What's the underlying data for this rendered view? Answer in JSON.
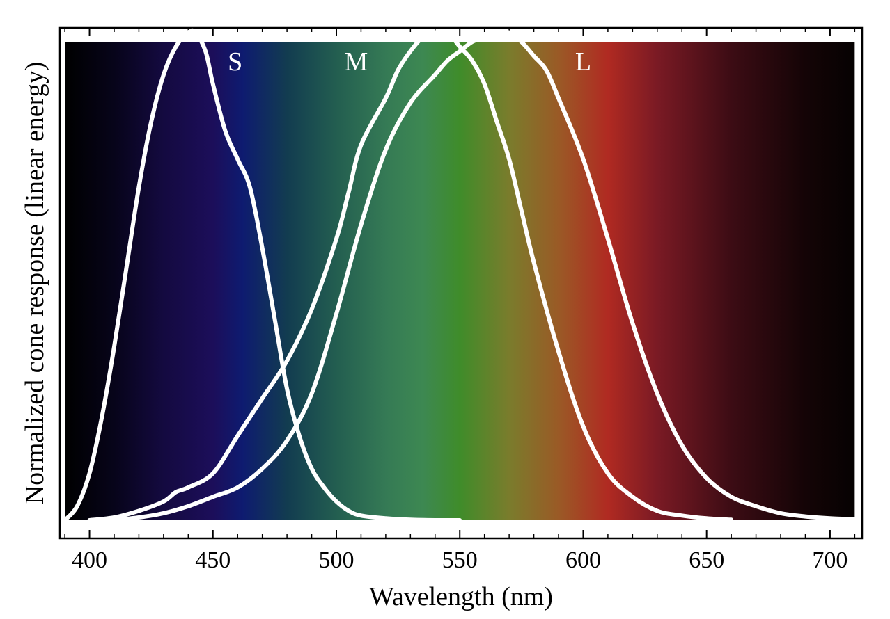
{
  "chart_data": {
    "type": "line",
    "xlabel": "Wavelength (nm)",
    "ylabel": "Normalized cone response (linear energy)",
    "xlim": [
      388,
      713
    ],
    "ylim": [
      0,
      1.05
    ],
    "xticks": [
      400,
      450,
      500,
      550,
      600,
      650,
      700
    ],
    "yticks_shown": false,
    "grid": false,
    "background": "visible-spectrum gradient 390–710 nm",
    "spectrum_colors": [
      {
        "nm": 390,
        "color": "#000000"
      },
      {
        "nm": 410,
        "color": "#07041a"
      },
      {
        "nm": 430,
        "color": "#140a40"
      },
      {
        "nm": 450,
        "color": "#1c0e5a"
      },
      {
        "nm": 462,
        "color": "#0e1b70"
      },
      {
        "nm": 480,
        "color": "#123c50"
      },
      {
        "nm": 500,
        "color": "#235e50"
      },
      {
        "nm": 520,
        "color": "#357a55"
      },
      {
        "nm": 535,
        "color": "#3d8852"
      },
      {
        "nm": 550,
        "color": "#3f8c2a"
      },
      {
        "nm": 570,
        "color": "#7a7c2c"
      },
      {
        "nm": 590,
        "color": "#9a5a26"
      },
      {
        "nm": 610,
        "color": "#b02a22"
      },
      {
        "nm": 630,
        "color": "#7a1a24"
      },
      {
        "nm": 660,
        "color": "#3c0c14"
      },
      {
        "nm": 690,
        "color": "#140406"
      },
      {
        "nm": 710,
        "color": "#060202"
      }
    ],
    "series": [
      {
        "name": "S",
        "color": "#ffffff",
        "x": [
          390,
          395,
          400,
          405,
          410,
          415,
          420,
          425,
          430,
          435,
          440,
          443,
          447,
          450,
          455,
          460,
          465,
          470,
          475,
          480,
          485,
          490,
          495,
          500,
          505,
          510,
          520,
          530,
          540,
          550
        ],
        "y": [
          0.0,
          0.03,
          0.1,
          0.22,
          0.37,
          0.54,
          0.71,
          0.85,
          0.95,
          1.01,
          1.04,
          1.04,
          1.0,
          0.93,
          0.83,
          0.77,
          0.71,
          0.58,
          0.43,
          0.28,
          0.18,
          0.11,
          0.07,
          0.04,
          0.02,
          0.01,
          0.004,
          0.001,
          0.0,
          0.0
        ]
      },
      {
        "name": "M",
        "color": "#ffffff",
        "x": [
          400,
          410,
          420,
          430,
          435,
          440,
          450,
          460,
          470,
          480,
          490,
          500,
          505,
          510,
          520,
          525,
          530,
          535,
          540,
          545,
          550,
          555,
          560,
          565,
          570,
          575,
          580,
          590,
          600,
          610,
          620,
          630,
          640,
          650,
          660
        ],
        "y": [
          0.0,
          0.006,
          0.02,
          0.04,
          0.06,
          0.07,
          0.1,
          0.18,
          0.26,
          0.34,
          0.45,
          0.6,
          0.7,
          0.8,
          0.9,
          0.96,
          1.0,
          1.03,
          1.04,
          1.04,
          1.01,
          0.98,
          0.93,
          0.85,
          0.77,
          0.66,
          0.55,
          0.36,
          0.2,
          0.1,
          0.05,
          0.02,
          0.01,
          0.004,
          0.001
        ]
      },
      {
        "name": "L",
        "color": "#ffffff",
        "x": [
          410,
          420,
          430,
          440,
          450,
          460,
          470,
          480,
          490,
          500,
          510,
          520,
          530,
          540,
          545,
          550,
          555,
          560,
          565,
          570,
          575,
          580,
          585,
          590,
          600,
          610,
          620,
          630,
          640,
          650,
          660,
          670,
          680,
          690,
          700,
          710
        ],
        "y": [
          0.0,
          0.006,
          0.015,
          0.03,
          0.05,
          0.07,
          0.11,
          0.17,
          0.27,
          0.44,
          0.63,
          0.79,
          0.89,
          0.95,
          0.98,
          1.0,
          1.02,
          1.03,
          1.04,
          1.04,
          1.02,
          0.99,
          0.96,
          0.9,
          0.77,
          0.6,
          0.42,
          0.27,
          0.16,
          0.09,
          0.05,
          0.03,
          0.015,
          0.008,
          0.004,
          0.002
        ]
      }
    ],
    "annotations": [
      {
        "text": "S",
        "x": 459,
        "y": 0.98
      },
      {
        "text": "M",
        "x": 508,
        "y": 0.98
      },
      {
        "text": "L",
        "x": 600,
        "y": 0.98
      }
    ]
  }
}
